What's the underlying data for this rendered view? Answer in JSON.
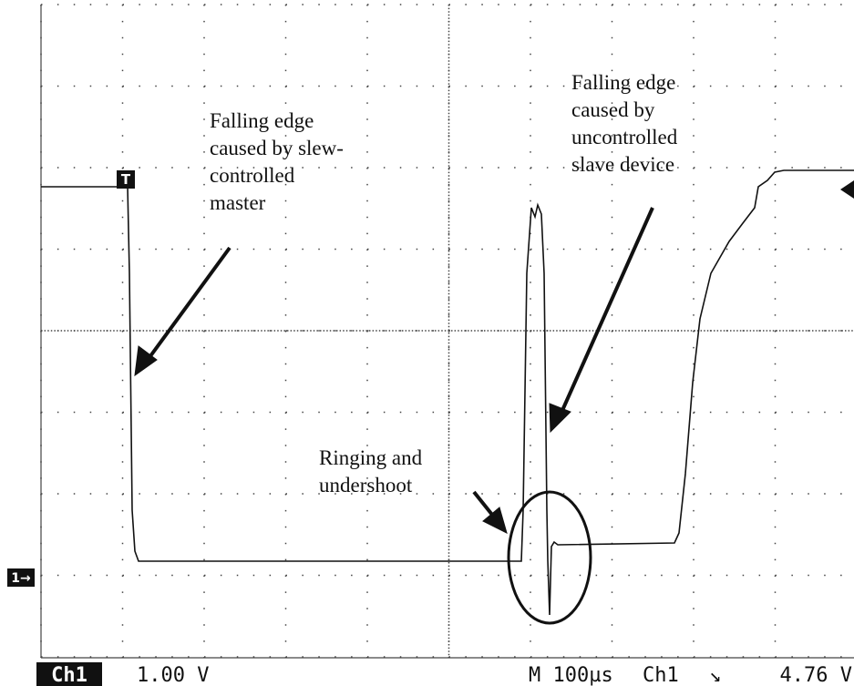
{
  "trigger_marker": "T",
  "ground_marker": "1→",
  "annotations": [
    {
      "lines": [
        "Falling edge",
        "caused by slew-",
        "controlled",
        "master"
      ]
    },
    {
      "lines": [
        "Falling edge",
        "caused by",
        "uncontrolled",
        "slave device"
      ]
    },
    {
      "lines": [
        "Ringing and",
        "undershoot"
      ]
    }
  ],
  "status": {
    "channel": "Ch1",
    "scale": "1.00 V",
    "timebase": "M 100µs",
    "trigger_channel": "Ch1",
    "trigger_slope": "↘",
    "trigger_level": "4.76 V"
  }
}
